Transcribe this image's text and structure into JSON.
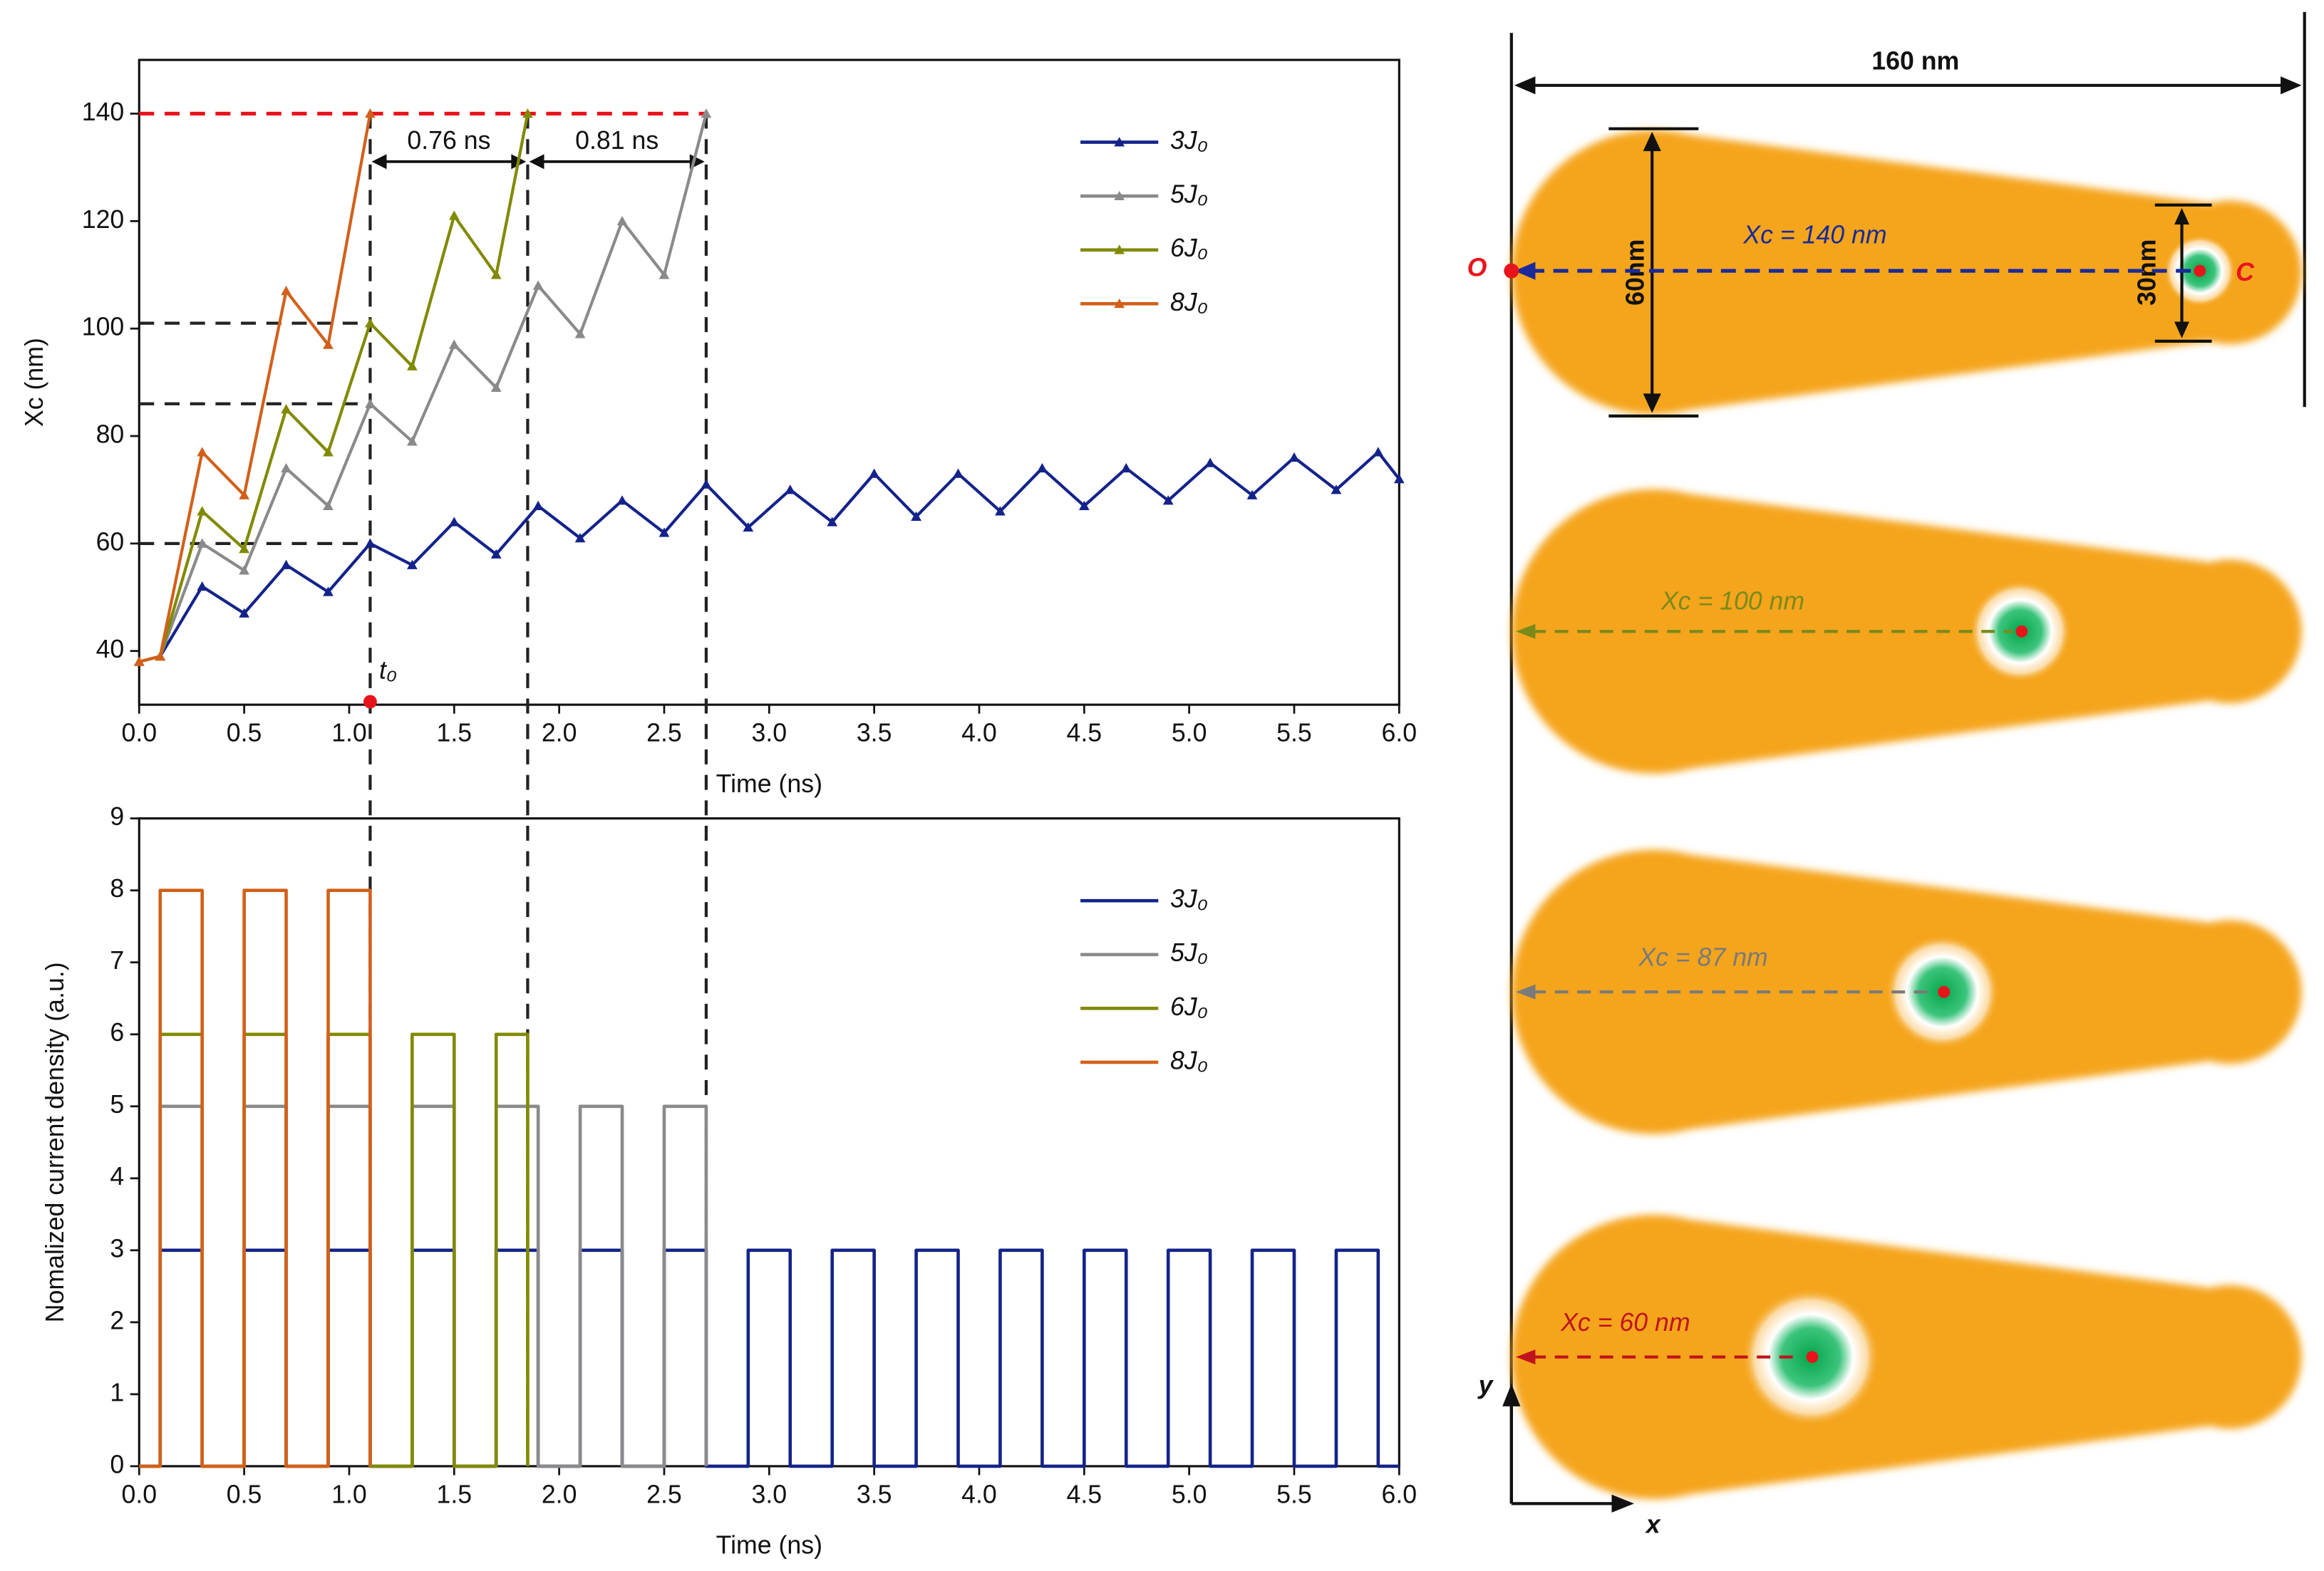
{
  "chart_data": [
    {
      "type": "line",
      "xlabel": "Time (ns)",
      "ylabel": "Xc (nm)",
      "xlim": [
        0,
        6
      ],
      "ylim": [
        30,
        150
      ],
      "xticks": [
        {
          "value": 0,
          "label": "0.0"
        },
        0.5,
        {
          "value": 1,
          "label": "1.0"
        },
        1.5,
        {
          "value": 2,
          "label": "2.0"
        },
        2.5,
        {
          "value": 3,
          "label": "3.0"
        },
        3.5,
        {
          "value": 4,
          "label": "4.0"
        },
        4.5,
        {
          "value": 5,
          "label": "5.0"
        },
        5.5,
        {
          "value": 6,
          "label": "6.0"
        }
      ],
      "yticks": [
        40,
        60,
        80,
        100,
        120,
        140
      ],
      "legend": "upper right",
      "markers": true,
      "interval_labels": [
        "0.76 ns",
        "0.81 ns"
      ],
      "marker_label": "t₀",
      "series": [
        {
          "name": "3J₀",
          "color": "#14238a",
          "x": [
            0,
            0.1,
            0.3,
            0.5,
            0.7,
            0.9,
            1.1,
            1.3,
            1.5,
            1.7,
            1.9,
            2.1,
            2.3,
            2.5,
            2.7,
            2.9,
            3.1,
            3.3,
            3.5,
            3.7,
            3.9,
            4.1,
            4.3,
            4.5,
            4.7,
            4.9,
            5.1,
            5.3,
            5.5,
            5.7,
            5.9,
            6.0
          ],
          "values": [
            38,
            39,
            52,
            47,
            56,
            51,
            60,
            56,
            64,
            58,
            67,
            61,
            68,
            62,
            71,
            63,
            70,
            64,
            73,
            65,
            73,
            66,
            74,
            67,
            74,
            68,
            75,
            69,
            76,
            70,
            77,
            72
          ]
        },
        {
          "name": "5J₀",
          "color": "#8a8a8a",
          "x": [
            0,
            0.1,
            0.3,
            0.5,
            0.7,
            0.9,
            1.1,
            1.3,
            1.5,
            1.7,
            1.9,
            2.1,
            2.3,
            2.5,
            2.7
          ],
          "values": [
            38,
            39,
            60,
            55,
            74,
            67,
            86,
            79,
            97,
            89,
            108,
            99,
            120,
            110,
            140
          ]
        },
        {
          "name": "6J₀",
          "color": "#808a00",
          "x": [
            0,
            0.1,
            0.3,
            0.5,
            0.7,
            0.9,
            1.1,
            1.3,
            1.5,
            1.7,
            1.85
          ],
          "values": [
            38,
            39,
            66,
            59,
            85,
            77,
            101,
            93,
            121,
            110,
            140
          ]
        },
        {
          "name": "8J₀",
          "color": "#d2601a",
          "x": [
            0,
            0.1,
            0.3,
            0.5,
            0.7,
            0.9,
            1.1
          ],
          "values": [
            38,
            39,
            77,
            69,
            107,
            97,
            140
          ]
        }
      ]
    },
    {
      "type": "line",
      "xlabel": "Time (ns)",
      "ylabel": "Nomalized current density (a.u.)",
      "xlim": [
        0,
        6
      ],
      "ylim": [
        0,
        9
      ],
      "xticks": [
        {
          "value": 0,
          "label": "0.0"
        },
        0.5,
        {
          "value": 1,
          "label": "1.0"
        },
        1.5,
        {
          "value": 2,
          "label": "2.0"
        },
        2.5,
        {
          "value": 3,
          "label": "3.0"
        },
        3.5,
        {
          "value": 4,
          "label": "4.0"
        },
        4.5,
        {
          "value": 5,
          "label": "5.0"
        },
        5.5,
        {
          "value": 6,
          "label": "6.0"
        }
      ],
      "yticks": [
        0,
        1,
        2,
        3,
        4,
        5,
        6,
        7,
        8,
        9
      ],
      "legend": "upper right",
      "markers": false,
      "series": [
        {
          "name": "3J₀",
          "color": "#14238a",
          "x": [
            0,
            0.1,
            0.1,
            0.3,
            0.3,
            0.5,
            0.5,
            0.7,
            0.7,
            0.9,
            0.9,
            1.1,
            1.1,
            1.3,
            1.3,
            1.5,
            1.5,
            1.7,
            1.7,
            1.9,
            1.9,
            2.1,
            2.1,
            2.3,
            2.3,
            2.5,
            2.5,
            2.7,
            2.7,
            2.9,
            2.9,
            3.1,
            3.1,
            3.3,
            3.3,
            3.5,
            3.5,
            3.7,
            3.7,
            3.9,
            3.9,
            4.1,
            4.1,
            4.3,
            4.3,
            4.5,
            4.5,
            4.7,
            4.7,
            4.9,
            4.9,
            5.1,
            5.1,
            5.3,
            5.3,
            5.5,
            5.5,
            5.7,
            5.7,
            5.9,
            5.9,
            6.0
          ],
          "values": [
            0,
            0,
            3,
            3,
            0,
            0,
            3,
            3,
            0,
            0,
            3,
            3,
            0,
            0,
            3,
            3,
            0,
            0,
            3,
            3,
            0,
            0,
            3,
            3,
            0,
            0,
            3,
            3,
            0,
            0,
            3,
            3,
            0,
            0,
            3,
            3,
            0,
            0,
            3,
            3,
            0,
            0,
            3,
            3,
            0,
            0,
            3,
            3,
            0,
            0,
            3,
            3,
            0,
            0,
            3,
            3,
            0,
            0,
            3,
            3,
            0,
            0
          ]
        },
        {
          "name": "5J₀",
          "color": "#8a8a8a",
          "x": [
            0,
            0.1,
            0.1,
            0.3,
            0.3,
            0.5,
            0.5,
            0.7,
            0.7,
            0.9,
            0.9,
            1.1,
            1.1,
            1.3,
            1.3,
            1.5,
            1.5,
            1.7,
            1.7,
            1.9,
            1.9,
            2.1,
            2.1,
            2.3,
            2.3,
            2.5,
            2.5,
            2.7,
            2.7
          ],
          "values": [
            0,
            0,
            5,
            5,
            0,
            0,
            5,
            5,
            0,
            0,
            5,
            5,
            0,
            0,
            5,
            5,
            0,
            0,
            5,
            5,
            0,
            0,
            5,
            5,
            0,
            0,
            5,
            5,
            0
          ]
        },
        {
          "name": "6J₀",
          "color": "#808a00",
          "x": [
            0,
            0.1,
            0.1,
            0.3,
            0.3,
            0.5,
            0.5,
            0.7,
            0.7,
            0.9,
            0.9,
            1.1,
            1.1,
            1.3,
            1.3,
            1.5,
            1.5,
            1.7,
            1.7,
            1.85,
            1.85
          ],
          "values": [
            0,
            0,
            6,
            6,
            0,
            0,
            6,
            6,
            0,
            0,
            6,
            6,
            0,
            0,
            6,
            6,
            0,
            0,
            6,
            6,
            0
          ]
        },
        {
          "name": "8J₀",
          "color": "#d2601a",
          "x": [
            0,
            0.1,
            0.1,
            0.3,
            0.3,
            0.5,
            0.5,
            0.7,
            0.7,
            0.9,
            0.9,
            1.1,
            1.1
          ],
          "values": [
            0,
            0,
            8,
            8,
            0,
            0,
            8,
            8,
            0,
            0,
            8,
            8,
            0
          ]
        }
      ]
    }
  ],
  "diagram": {
    "width_label": "160 nm",
    "height_label": "60nm",
    "neck_label": "30nm",
    "origin": "O",
    "center": "C",
    "panels": [
      "Xc = 140 nm",
      "Xc = 100 nm",
      "Xc = 87 nm",
      "Xc = 60 nm"
    ],
    "axis_x": "x",
    "axis_y": "y"
  }
}
